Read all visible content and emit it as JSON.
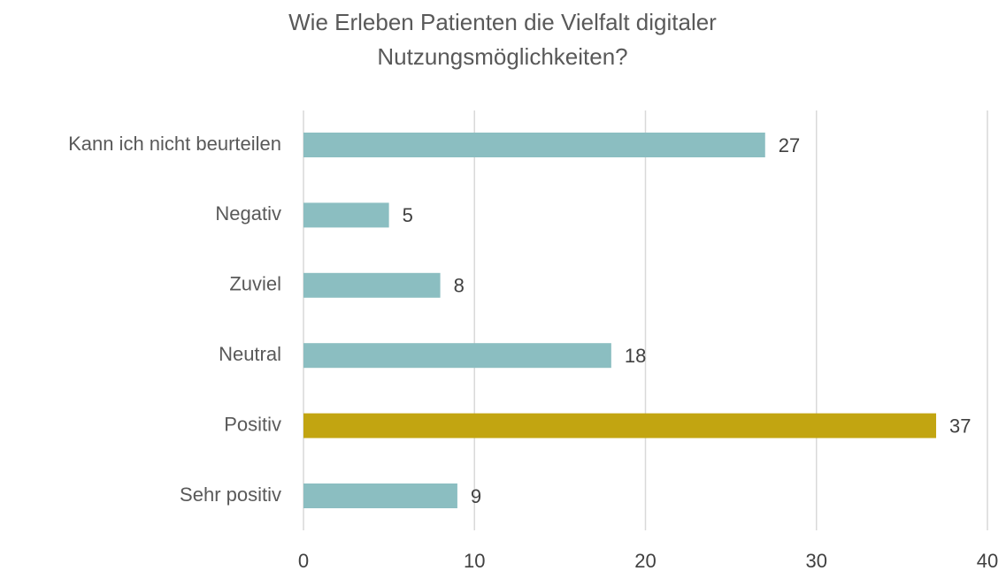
{
  "chart_data": {
    "type": "hbar",
    "title": "Wie Erleben Patienten die Vielfalt digitaler Nutzungsmöglichkeiten?",
    "categories": [
      "Kann ich nicht beurteilen",
      "Negativ",
      "Zuviel",
      "Neutral",
      "Positiv",
      "Sehr positiv"
    ],
    "values": [
      27,
      5,
      8,
      18,
      37,
      9
    ],
    "colors": [
      "#8bbec1",
      "#8bbec1",
      "#8bbec1",
      "#8bbec1",
      "#c2a511",
      "#8bbec1"
    ],
    "xlim": [
      0,
      40
    ],
    "xticks": [
      0,
      10,
      20,
      30,
      40
    ],
    "grid": true
  }
}
